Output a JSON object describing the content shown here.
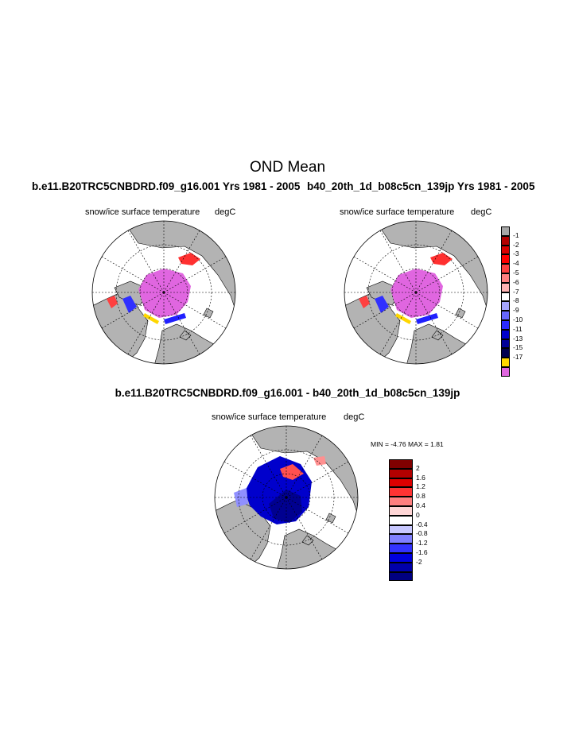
{
  "figure": {
    "main_title": "OND Mean",
    "panel_left_title": "b.e11.B20TRC5CNBDRD.f09_g16.001  Yrs 1981 - 2005",
    "panel_right_title": "b40_20th_1d_b08c5cn_139jp  Yrs 1981 - 2005",
    "panel_diff_title": "b.e11.B20TRC5CNBDRD.f09_g16.001 - b40_20th_1d_b08c5cn_139jp",
    "variable": "snow/ice surface temperature",
    "units": "degC",
    "minmax_text": "MIN =  -4.76 MAX =   1.81"
  },
  "chart_data": {
    "type": "map",
    "projection": "north polar stereographic",
    "panels": [
      {
        "name": "b.e11.B20TRC5CNBDRD.f09_g16.001",
        "years": "1981 - 2005",
        "season": "OND"
      },
      {
        "name": "b40_20th_1d_b08c5cn_139jp",
        "years": "1981 - 2005",
        "season": "OND"
      },
      {
        "name": "difference",
        "min": -4.76,
        "max": 1.81
      }
    ],
    "colorbar_abs": {
      "labels": [
        "-1",
        "-2",
        "-3",
        "-4",
        "-5",
        "-6",
        "-7",
        "-8",
        "-9",
        "-10",
        "-11",
        "-13",
        "-15",
        "-17"
      ],
      "colors": [
        "#a6a6a6",
        "#b30000",
        "#d90000",
        "#ff0000",
        "#ff4040",
        "#ff8080",
        "#ffb3b3",
        "#ffffff",
        "#a6a6ff",
        "#6666ff",
        "#2a2aff",
        "#0000cc",
        "#000099",
        "#000050",
        "#ffd700",
        "#e066e0"
      ]
    },
    "colorbar_diff": {
      "labels": [
        "2",
        "1.6",
        "1.2",
        "0.8",
        "0.4",
        "0",
        "-0.4",
        "-0.8",
        "-1.2",
        "-1.6",
        "-2"
      ],
      "colors": [
        "#800000",
        "#b30000",
        "#dd0000",
        "#ff3333",
        "#ff8080",
        "#ffd6d6",
        "#ffffff",
        "#c8c8ff",
        "#8080ff",
        "#3333ff",
        "#0000dd",
        "#0000aa",
        "#000080"
      ]
    },
    "map_colors": {
      "land": "#b3b3b3",
      "ocean": "#ffffff",
      "coast": "#000000",
      "grid": "#000000"
    }
  }
}
